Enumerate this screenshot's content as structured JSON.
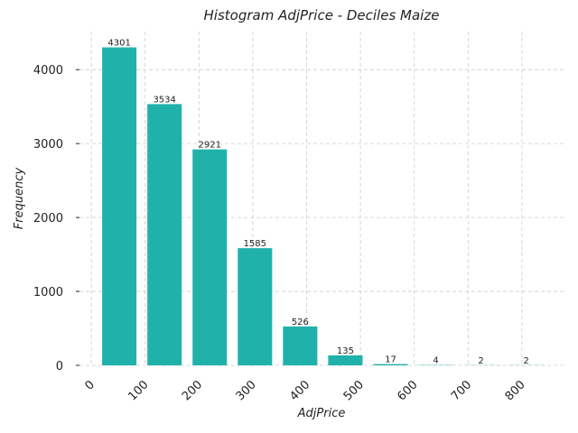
{
  "chart_data": {
    "type": "histogram",
    "title": "Histogram AdjPrice - Deciles Maize",
    "x_label": "AdjPrice",
    "y_label": "Frequency",
    "bins": [
      10,
      94,
      178,
      262,
      346,
      430,
      514,
      598,
      682,
      766,
      850
    ],
    "values": [
      4301,
      3534,
      2921,
      1585,
      526,
      135,
      17,
      4,
      2,
      2
    ],
    "color": "#20b2aa",
    "xlim": [
      -22,
      879
    ],
    "xticks": [
      0,
      100,
      200,
      300,
      400,
      500,
      600,
      700,
      800
    ],
    "ylim": [
      0,
      4515
    ],
    "yticks": [
      0,
      1000,
      2000,
      3000,
      4000
    ],
    "grid": true
  }
}
